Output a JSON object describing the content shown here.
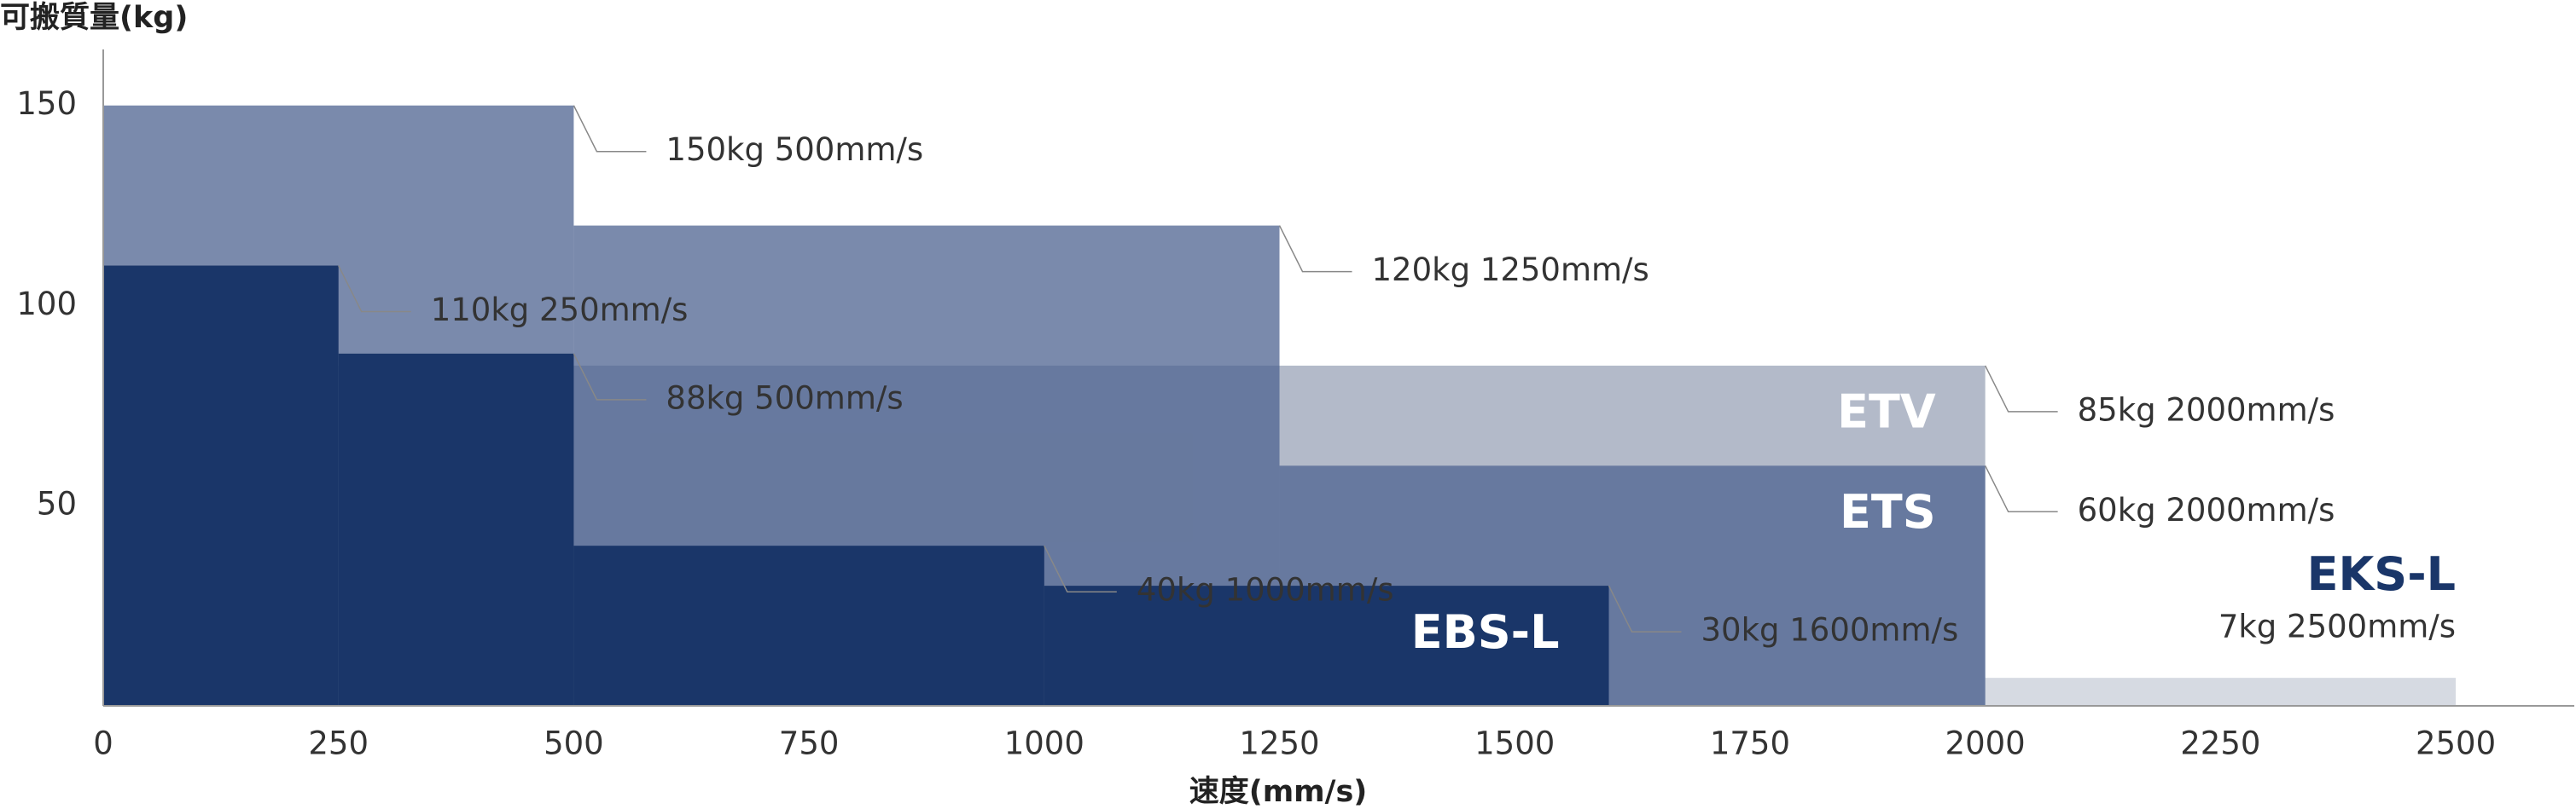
{
  "chart_data": {
    "type": "step-area",
    "x_label": "速度(mm/s)",
    "y_label": "可搬質量(kg)",
    "xlim": [
      0,
      2626
    ],
    "xticks": [
      0,
      250,
      500,
      750,
      1000,
      1250,
      1500,
      1750,
      2000,
      2250,
      2500
    ],
    "ylim": [
      0,
      164
    ],
    "yticks": [
      50,
      100,
      150
    ],
    "series": [
      {
        "name": "EKS-L",
        "color": "#d6dae2",
        "opacity": 1,
        "x": [
          2500
        ],
        "values": [
          7
        ],
        "value_labels": [
          "7kg 2500mm/s"
        ]
      },
      {
        "name": "ETV",
        "color": "#b3bac9",
        "opacity": 1,
        "x": [
          2000
        ],
        "values": [
          85
        ],
        "value_labels": [
          "85kg 2000mm/s"
        ]
      },
      {
        "name": "ETS",
        "color": "#4d6390",
        "opacity": 0.75,
        "x": [
          500,
          1250,
          2000
        ],
        "values": [
          150,
          120,
          60
        ],
        "value_labels": [
          "150kg 500mm/s",
          "120kg 1250mm/s",
          "60kg 2000mm/s"
        ]
      },
      {
        "name": "EBS-L",
        "color": "#1a3669",
        "opacity": 1,
        "x": [
          250,
          500,
          1000,
          1600
        ],
        "values": [
          110,
          88,
          40,
          30
        ],
        "value_labels": [
          "110kg 250mm/s",
          "88kg 500mm/s",
          "40kg 1000mm/s",
          "30kg 1600mm/s"
        ]
      }
    ]
  }
}
